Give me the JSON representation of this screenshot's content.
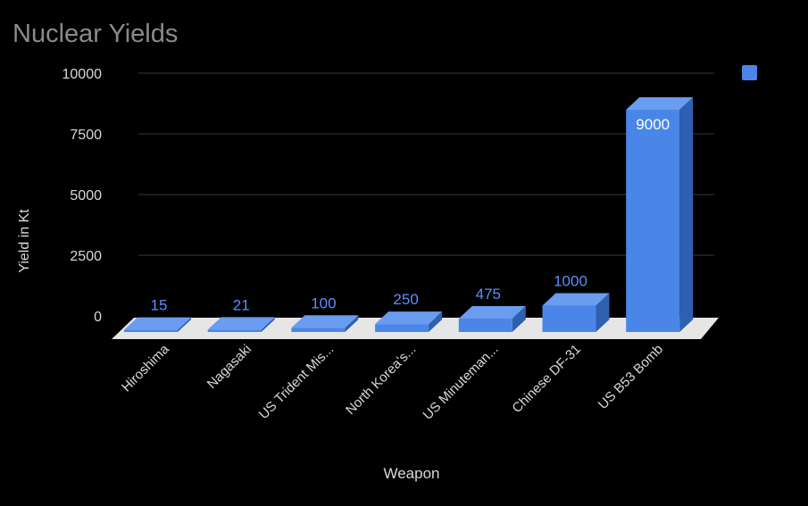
{
  "chart_data": {
    "type": "bar",
    "style": "3d",
    "title": "Nuclear Yields",
    "xlabel": "Weapon",
    "ylabel": "Yield in Kt",
    "ylim": [
      0,
      10000
    ],
    "yticks": [
      0,
      2500,
      5000,
      7500,
      10000
    ],
    "grid": true,
    "legend": {
      "placement": "top-right",
      "entries": [
        ""
      ]
    },
    "categories": [
      "Hiroshima",
      "Nagasaki",
      "US Trident Mis...",
      "North Korea's...",
      "US Minuteman...",
      "Chinese DF-31",
      "US B53 Bomb"
    ],
    "values": [
      15,
      21,
      100,
      250,
      475,
      1000,
      9000
    ],
    "data_labels": [
      "15",
      "21",
      "100",
      "250",
      "475",
      "1000",
      "9000"
    ],
    "colors": {
      "bar": "#4a86e8",
      "bar_top": "#6a9cf0",
      "bar_side": "#2f5fb0",
      "label_outside": "#5b8ff9",
      "floor": "#e6e6e6",
      "grid": "#3a3a3a",
      "text": "#d9d9d9"
    }
  }
}
